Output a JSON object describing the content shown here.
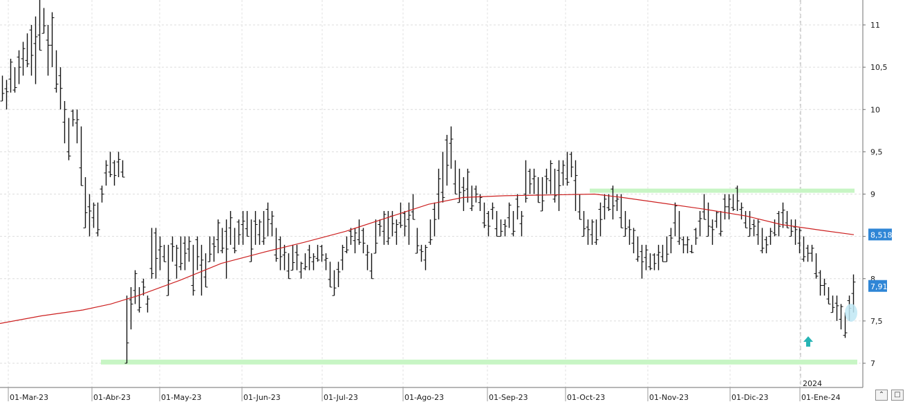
{
  "chart_data": {
    "type": "ohlc",
    "y_ticks": [
      "7",
      "7,5",
      "8",
      "8,5",
      "9",
      "9,5",
      "10",
      "10,5",
      "11"
    ],
    "y_tick_values": [
      7,
      7.5,
      8,
      8.5,
      9,
      9.5,
      10,
      10.5,
      11
    ],
    "ylim": [
      6.74,
      11.29
    ],
    "x_labels": [
      "01-Mar-23",
      "01-Abr-23",
      "01-May-23",
      "01-Jun-23",
      "01-Jul-23",
      "01-Ago-23",
      "01-Sep-23",
      "01-Oct-23",
      "01-Nov-23",
      "01-Dic-23",
      "01-Ene-24"
    ],
    "year_marker": "2024",
    "last_price_label": "7,91",
    "last_price": 7.91,
    "moving_average_label": "8,518",
    "moving_average_value": 8.518,
    "price_bars_hl": [
      [
        10.1,
        10.4
      ],
      [
        10.0,
        10.35
      ],
      [
        10.2,
        10.6
      ],
      [
        10.2,
        10.5
      ],
      [
        10.3,
        10.7
      ],
      [
        10.4,
        10.8
      ],
      [
        10.5,
        10.9
      ],
      [
        10.4,
        11.0
      ],
      [
        10.3,
        11.1
      ],
      [
        10.7,
        11.3
      ],
      [
        10.9,
        11.2
      ],
      [
        10.4,
        11.0
      ],
      [
        10.5,
        11.15
      ],
      [
        10.2,
        10.7
      ],
      [
        10.0,
        10.5
      ],
      [
        9.6,
        10.1
      ],
      [
        9.4,
        9.9
      ],
      [
        9.8,
        10.0
      ],
      [
        9.6,
        10.0
      ],
      [
        9.1,
        9.8
      ],
      [
        8.6,
        9.2
      ],
      [
        8.5,
        9.0
      ],
      [
        8.6,
        8.9
      ],
      [
        8.5,
        8.9
      ],
      [
        8.9,
        9.1
      ],
      [
        9.1,
        9.4
      ],
      [
        9.2,
        9.5
      ],
      [
        9.1,
        9.4
      ],
      [
        9.2,
        9.5
      ],
      [
        9.2,
        9.4
      ],
      [
        7.0,
        7.8
      ],
      [
        7.4,
        7.9
      ],
      [
        7.7,
        8.1
      ],
      [
        7.6,
        7.9
      ],
      [
        7.8,
        8.0
      ],
      [
        7.6,
        7.8
      ],
      [
        8.0,
        8.6
      ],
      [
        8.0,
        8.6
      ],
      [
        8.1,
        8.5
      ],
      [
        8.2,
        8.4
      ],
      [
        7.8,
        8.4
      ],
      [
        8.2,
        8.5
      ],
      [
        8.0,
        8.4
      ],
      [
        8.1,
        8.5
      ],
      [
        8.1,
        8.5
      ],
      [
        8.2,
        8.5
      ],
      [
        7.8,
        8.4
      ],
      [
        8.1,
        8.5
      ],
      [
        7.8,
        8.4
      ],
      [
        7.9,
        8.3
      ],
      [
        8.2,
        8.5
      ],
      [
        8.2,
        8.5
      ],
      [
        8.3,
        8.7
      ],
      [
        8.3,
        8.6
      ],
      [
        8.0,
        8.7
      ],
      [
        8.4,
        8.8
      ],
      [
        8.3,
        8.6
      ],
      [
        8.4,
        8.7
      ],
      [
        8.4,
        8.8
      ],
      [
        8.5,
        8.8
      ],
      [
        8.2,
        8.7
      ],
      [
        8.4,
        8.8
      ],
      [
        8.4,
        8.7
      ],
      [
        8.4,
        8.8
      ],
      [
        8.5,
        8.9
      ],
      [
        8.5,
        8.8
      ],
      [
        8.2,
        8.6
      ],
      [
        8.1,
        8.5
      ],
      [
        8.1,
        8.4
      ],
      [
        8.0,
        8.3
      ],
      [
        8.1,
        8.4
      ],
      [
        8.1,
        8.4
      ],
      [
        8.0,
        8.2
      ],
      [
        8.1,
        8.3
      ],
      [
        8.1,
        8.4
      ],
      [
        8.1,
        8.3
      ],
      [
        8.2,
        8.4
      ],
      [
        8.2,
        8.4
      ],
      [
        8.1,
        8.3
      ],
      [
        7.9,
        8.2
      ],
      [
        7.8,
        8.1
      ],
      [
        7.9,
        8.2
      ],
      [
        8.1,
        8.4
      ],
      [
        8.3,
        8.5
      ],
      [
        8.4,
        8.6
      ],
      [
        8.3,
        8.6
      ],
      [
        8.4,
        8.7
      ],
      [
        8.3,
        8.6
      ],
      [
        8.1,
        8.4
      ],
      [
        8.0,
        8.3
      ],
      [
        8.3,
        8.7
      ],
      [
        8.5,
        8.7
      ],
      [
        8.4,
        8.8
      ],
      [
        8.4,
        8.8
      ],
      [
        8.5,
        8.8
      ],
      [
        8.4,
        8.7
      ],
      [
        8.6,
        8.9
      ],
      [
        8.5,
        8.8
      ],
      [
        8.4,
        8.9
      ],
      [
        8.7,
        9.0
      ],
      [
        8.3,
        8.6
      ],
      [
        8.2,
        8.4
      ],
      [
        8.1,
        8.4
      ],
      [
        8.4,
        8.7
      ],
      [
        8.5,
        8.9
      ],
      [
        8.7,
        9.3
      ],
      [
        8.9,
        9.5
      ],
      [
        9.1,
        9.7
      ],
      [
        9.3,
        9.8
      ],
      [
        9.0,
        9.4
      ],
      [
        8.9,
        9.3
      ],
      [
        8.8,
        9.2
      ],
      [
        8.9,
        9.3
      ],
      [
        8.8,
        9.1
      ],
      [
        8.9,
        9.1
      ],
      [
        8.8,
        9.0
      ],
      [
        8.6,
        8.9
      ],
      [
        8.5,
        8.8
      ],
      [
        8.7,
        8.9
      ],
      [
        8.5,
        8.8
      ],
      [
        8.5,
        8.7
      ],
      [
        8.5,
        8.7
      ],
      [
        8.6,
        8.9
      ],
      [
        8.5,
        8.8
      ],
      [
        8.7,
        9.0
      ],
      [
        8.5,
        8.8
      ],
      [
        8.9,
        9.4
      ],
      [
        9.0,
        9.3
      ],
      [
        9.0,
        9.3
      ],
      [
        8.9,
        9.2
      ],
      [
        8.8,
        9.2
      ],
      [
        9.0,
        9.3
      ],
      [
        9.0,
        9.4
      ],
      [
        8.9,
        9.3
      ],
      [
        8.8,
        9.4
      ],
      [
        9.1,
        9.4
      ],
      [
        9.1,
        9.5
      ],
      [
        9.2,
        9.5
      ],
      [
        8.8,
        9.4
      ],
      [
        8.7,
        9.0
      ],
      [
        8.5,
        8.8
      ],
      [
        8.4,
        8.7
      ],
      [
        8.4,
        8.7
      ],
      [
        8.4,
        8.7
      ],
      [
        8.5,
        8.9
      ],
      [
        8.7,
        9.0
      ],
      [
        8.8,
        9.0
      ],
      [
        8.7,
        9.1
      ],
      [
        8.8,
        9.0
      ],
      [
        8.6,
        9.0
      ],
      [
        8.5,
        8.8
      ],
      [
        8.4,
        8.7
      ],
      [
        8.3,
        8.6
      ],
      [
        8.2,
        8.5
      ],
      [
        8.0,
        8.4
      ],
      [
        8.1,
        8.4
      ],
      [
        8.1,
        8.3
      ],
      [
        8.1,
        8.3
      ],
      [
        8.1,
        8.4
      ],
      [
        8.2,
        8.4
      ],
      [
        8.2,
        8.5
      ],
      [
        8.3,
        8.6
      ],
      [
        8.5,
        8.9
      ],
      [
        8.4,
        8.8
      ],
      [
        8.3,
        8.5
      ],
      [
        8.3,
        8.5
      ],
      [
        8.3,
        8.4
      ],
      [
        8.4,
        8.6
      ],
      [
        8.5,
        8.8
      ],
      [
        8.7,
        9.0
      ],
      [
        8.5,
        8.9
      ],
      [
        8.4,
        8.7
      ],
      [
        8.6,
        8.8
      ],
      [
        8.5,
        8.8
      ],
      [
        8.7,
        9.0
      ],
      [
        8.7,
        9.0
      ],
      [
        8.8,
        9.0
      ],
      [
        8.8,
        9.1
      ],
      [
        8.7,
        8.9
      ],
      [
        8.6,
        8.8
      ],
      [
        8.5,
        8.8
      ],
      [
        8.5,
        8.7
      ],
      [
        8.4,
        8.7
      ],
      [
        8.3,
        8.6
      ],
      [
        8.3,
        8.5
      ],
      [
        8.4,
        8.6
      ],
      [
        8.5,
        8.7
      ],
      [
        8.5,
        8.8
      ],
      [
        8.6,
        8.9
      ],
      [
        8.6,
        8.8
      ],
      [
        8.5,
        8.7
      ],
      [
        8.4,
        8.7
      ],
      [
        8.3,
        8.6
      ],
      [
        8.2,
        8.5
      ],
      [
        8.2,
        8.4
      ],
      [
        8.2,
        8.4
      ],
      [
        8.0,
        8.3
      ],
      [
        7.8,
        8.1
      ],
      [
        7.8,
        8.0
      ],
      [
        7.7,
        7.9
      ],
      [
        7.6,
        7.8
      ],
      [
        7.5,
        7.8
      ],
      [
        7.4,
        7.7
      ],
      [
        7.3,
        7.6
      ],
      [
        7.5,
        7.8
      ],
      [
        7.6,
        8.05
      ]
    ],
    "moving_average": [
      [
        0,
        7.47
      ],
      [
        60,
        7.56
      ],
      [
        120,
        7.63
      ],
      [
        160,
        7.7
      ],
      [
        200,
        7.8
      ],
      [
        260,
        7.98
      ],
      [
        320,
        8.18
      ],
      [
        380,
        8.31
      ],
      [
        440,
        8.43
      ],
      [
        500,
        8.56
      ],
      [
        560,
        8.72
      ],
      [
        620,
        8.88
      ],
      [
        670,
        8.96
      ],
      [
        730,
        8.98
      ],
      [
        800,
        8.99
      ],
      [
        860,
        9.0
      ],
      [
        900,
        8.96
      ],
      [
        960,
        8.89
      ],
      [
        1020,
        8.82
      ],
      [
        1080,
        8.74
      ],
      [
        1130,
        8.64
      ],
      [
        1190,
        8.57
      ],
      [
        1235,
        8.52
      ]
    ],
    "resistance_band": {
      "x_from": 853,
      "x_to": 1236,
      "value": 9.04
    },
    "support_band": {
      "x_from": 146,
      "x_to": 1240,
      "value": 7.01
    },
    "year_divider_x": 1158,
    "grid": true
  }
}
